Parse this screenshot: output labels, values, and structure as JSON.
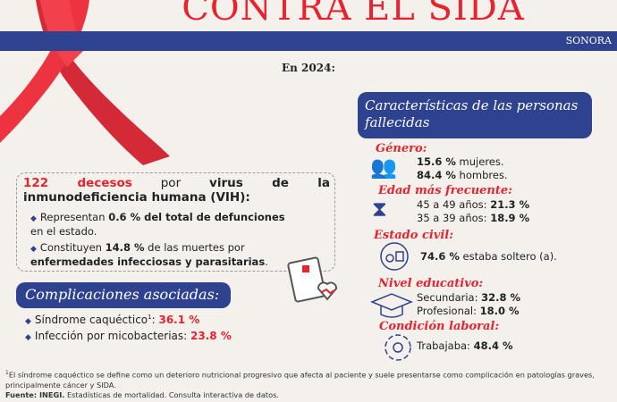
{
  "header": {
    "title": "CONTRA EL SIDA",
    "region": "SONORA",
    "year_label": "En 2024:"
  },
  "summary": {
    "deaths": "122 decesos",
    "by": " por ",
    "cause": "virus de la inmunodeficiencia humana (VIH):",
    "bullet1": {
      "pre": "Representan ",
      "bold": "0.6 % del total de defunciones",
      "post": " en el estado."
    },
    "bullet2": {
      "pre": "Constituyen ",
      "bold1": "14.8 %",
      "mid": " de las muertes por ",
      "bold2": "enfermedades infecciosas y parasitarias",
      "post": "."
    }
  },
  "complications": {
    "title": "Complicaciones asociadas:",
    "items": [
      {
        "label": "Síndrome caquéctico",
        "sup": "1",
        "value": "36.1 %"
      },
      {
        "label": "Infección por micobacterias:",
        "value": "23.8 %"
      }
    ]
  },
  "characteristics": {
    "title": "Características de las personas fallecidas",
    "gender": {
      "label": "Género:",
      "women_value": "15.6 %",
      "women": " mujeres.",
      "men_value": "84.4 %",
      "men": " hombres."
    },
    "age": {
      "label": "Edad más frecuente:",
      "r1": "45 a 49 años: ",
      "v1": "21.3 %",
      "r2": "35 a 39 años: ",
      "v2": "18.9 %"
    },
    "civil": {
      "label": "Estado civil:",
      "value": "74.6 %",
      "text": " estaba soltero (a)."
    },
    "education": {
      "label": "Nivel educativo:",
      "r1": "Secundaria: ",
      "v1": "32.8 %",
      "r2": "Profesional: ",
      "v2": "18.0 %"
    },
    "work": {
      "label": "Condición laboral:",
      "r1": "Trabajaba: ",
      "v1": "48.4 %"
    }
  },
  "footer": {
    "sup": "1",
    "note": "El síndrome caquéctico se define como un deterioro nutricional progresivo que afecta al paciente y suele presentarse como complicación en patologías graves, principalmente cáncer y SIDA.",
    "source_label": "Fuente: INEGI.",
    "source": " Estadísticas de mortalidad. Consulta interactiva de datos."
  },
  "colors": {
    "red": "#e8232f",
    "blue": "#2f4290",
    "background": "#f4f1ec"
  }
}
